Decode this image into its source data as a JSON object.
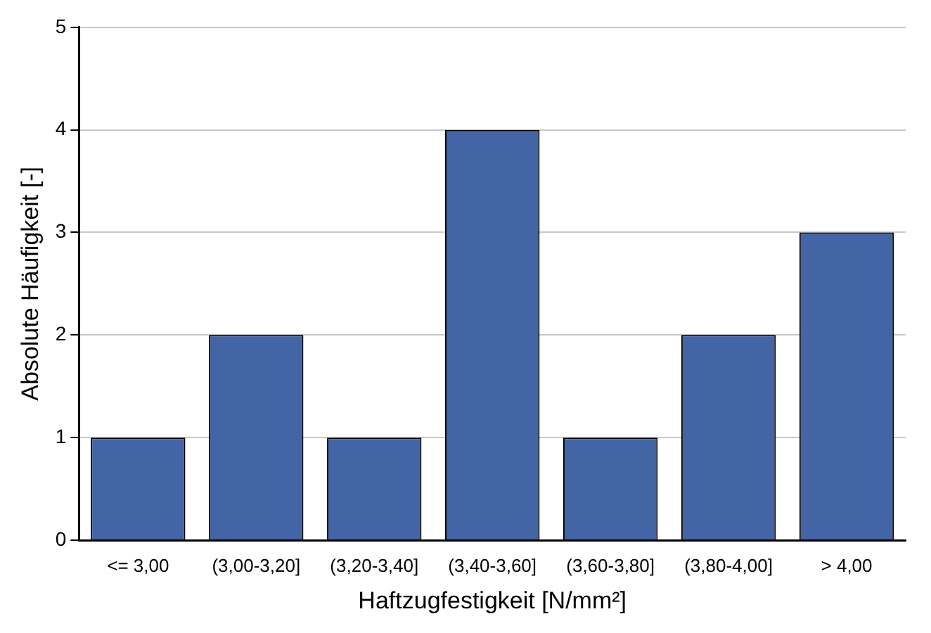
{
  "chart_data": {
    "type": "bar",
    "xlabel": "Haftzugfestigkeit [N/mm²]",
    "ylabel": "Absolute Häufigkeit [-]",
    "categories": [
      "<= 3,00",
      "(3,00-3,20]",
      "(3,20-3,40]",
      "(3,40-3,60]",
      "(3,60-3,80]",
      "(3,80-4,00]",
      "> 4,00"
    ],
    "values": [
      1,
      2,
      1,
      4,
      1,
      2,
      3
    ],
    "color": "#4465a5",
    "ylim": [
      0,
      5
    ],
    "yticks": [
      0,
      1,
      2,
      3,
      4,
      5
    ],
    "grid": "y",
    "legend": false
  }
}
